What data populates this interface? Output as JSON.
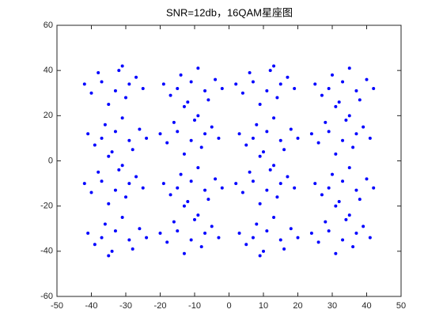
{
  "chart_data": {
    "type": "scatter",
    "title": "SNR=12db，16QAM星座图",
    "color": "#0000ff",
    "x": [
      -37,
      -30,
      -27,
      -40,
      -32,
      -35,
      -25,
      -38,
      -29,
      -33,
      -42,
      -31,
      -7,
      -14,
      -17,
      -4,
      -12,
      -9,
      -19,
      -6,
      -15,
      -11,
      -2,
      -13,
      7,
      14,
      17,
      4,
      12,
      9,
      19,
      6,
      15,
      11,
      2,
      13,
      37,
      30,
      27,
      40,
      32,
      35,
      25,
      38,
      29,
      33,
      42,
      31,
      -29,
      -36,
      -39,
      -26,
      -34,
      -31,
      -41,
      -28,
      -37,
      -33,
      -24,
      -35,
      -15,
      -8,
      -5,
      -18,
      -10,
      -13,
      -3,
      -16,
      -7,
      -11,
      -20,
      -9,
      15,
      8,
      5,
      18,
      10,
      13,
      3,
      16,
      7,
      11,
      20,
      9,
      29,
      36,
      39,
      26,
      34,
      31,
      41,
      28,
      37,
      33,
      24,
      35,
      -37,
      -30,
      -27,
      -40,
      -32,
      -35,
      -25,
      -38,
      -29,
      -33,
      -42,
      -31,
      -7,
      -14,
      -17,
      -4,
      -12,
      -9,
      -19,
      -6,
      -15,
      -11,
      -2,
      -13,
      7,
      14,
      17,
      4,
      12,
      9,
      19,
      6,
      15,
      11,
      2,
      13,
      37,
      30,
      27,
      40,
      32,
      35,
      25,
      38,
      29,
      33,
      42,
      31,
      -29,
      -36,
      -39,
      -26,
      -34,
      -31,
      -41,
      -28,
      -37,
      -33,
      -24,
      -35,
      -15,
      -8,
      -5,
      -18,
      -10,
      -13,
      -3,
      -16,
      -7,
      -11,
      -20,
      -9,
      15,
      8,
      5,
      18,
      10,
      13,
      3,
      16,
      7,
      11,
      20,
      9,
      29,
      36,
      39,
      26,
      34,
      31,
      41,
      28,
      37,
      33,
      24,
      35
    ],
    "values": [
      35,
      28,
      37,
      30,
      40,
      25,
      32,
      39,
      34,
      31,
      34,
      42,
      31,
      38,
      29,
      36,
      26,
      41,
      34,
      27,
      32,
      35,
      32,
      24,
      35,
      28,
      37,
      30,
      40,
      25,
      32,
      39,
      34,
      31,
      34,
      42,
      31,
      38,
      29,
      36,
      26,
      41,
      34,
      27,
      32,
      35,
      32,
      24,
      9,
      16,
      7,
      14,
      4,
      19,
      12,
      5,
      10,
      13,
      10,
      2,
      13,
      6,
      15,
      8,
      18,
      3,
      10,
      17,
      12,
      9,
      12,
      20,
      9,
      16,
      7,
      14,
      4,
      19,
      12,
      5,
      10,
      13,
      10,
      2,
      13,
      6,
      15,
      8,
      18,
      3,
      10,
      17,
      12,
      9,
      12,
      20,
      -9,
      -16,
      -7,
      -14,
      -4,
      -19,
      -12,
      -5,
      -10,
      -13,
      -10,
      -2,
      -13,
      -6,
      -15,
      -8,
      -18,
      -3,
      -10,
      -17,
      -12,
      -9,
      -12,
      -20,
      -9,
      -16,
      -7,
      -14,
      -4,
      -19,
      -12,
      -5,
      -10,
      -13,
      -10,
      -2,
      -13,
      -6,
      -15,
      -8,
      -18,
      -3,
      -10,
      -17,
      -12,
      -9,
      -12,
      -20,
      -35,
      -28,
      -37,
      -30,
      -40,
      -25,
      -32,
      -39,
      -34,
      -31,
      -34,
      -42,
      -31,
      -38,
      -29,
      -36,
      -26,
      -41,
      -34,
      -27,
      -32,
      -35,
      -32,
      -24,
      -35,
      -28,
      -37,
      -30,
      -40,
      -25,
      -32,
      -39,
      -34,
      -31,
      -34,
      -42,
      -31,
      -38,
      -29,
      -36,
      -26,
      -41,
      -34,
      -27,
      -32,
      -35,
      -32,
      -24
    ],
    "xlim": [
      -50,
      50
    ],
    "xticks": [
      -50,
      -40,
      -30,
      -20,
      -10,
      0,
      10,
      20,
      30,
      40,
      50
    ],
    "ylim": [
      -60,
      60
    ],
    "yticks": [
      -60,
      -40,
      -20,
      0,
      20,
      40,
      60
    ],
    "grid": false
  }
}
